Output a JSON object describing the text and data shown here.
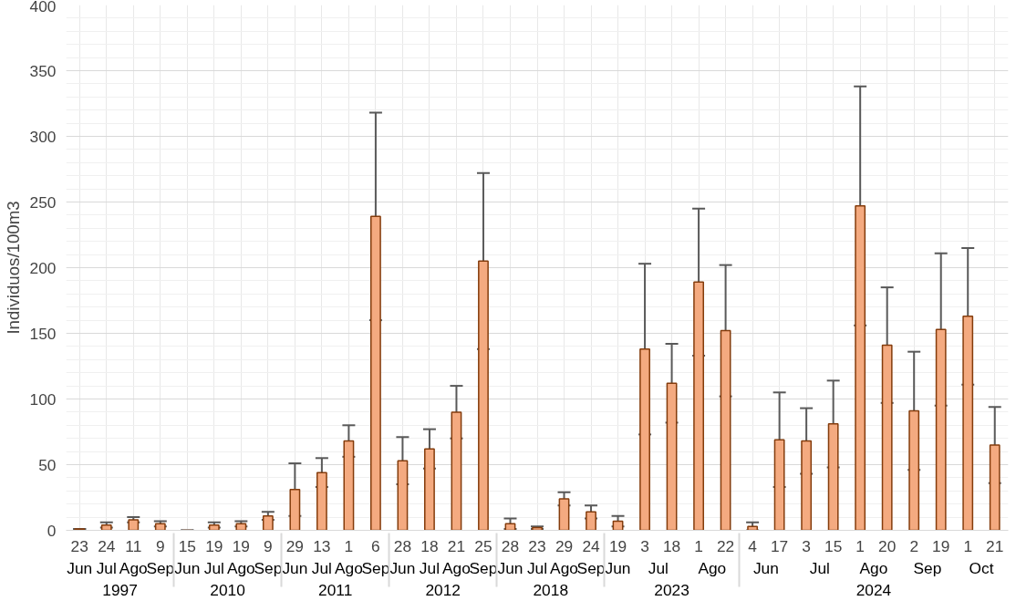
{
  "chart_data": {
    "type": "bar",
    "ylabel": "Individuos/100m3",
    "categories": [
      [
        "1997",
        "Jun",
        "23"
      ],
      [
        null,
        "Jul",
        "24"
      ],
      [
        null,
        "Ago",
        "11"
      ],
      [
        null,
        "Sep",
        "9"
      ],
      [
        "2010",
        "Jun",
        "15"
      ],
      [
        null,
        "Jul",
        "19"
      ],
      [
        null,
        "Ago",
        "19"
      ],
      [
        null,
        "Sep",
        "9"
      ],
      [
        "2011",
        "Jun",
        "29"
      ],
      [
        null,
        "Jul",
        "13"
      ],
      [
        null,
        "Ago",
        "1"
      ],
      [
        null,
        "Sep",
        "6"
      ],
      [
        "2012",
        "Jun",
        "28"
      ],
      [
        null,
        "Jul",
        "18"
      ],
      [
        null,
        "Ago",
        "21"
      ],
      [
        null,
        "Sep",
        "25"
      ],
      [
        "2018",
        "Jun",
        "28"
      ],
      [
        null,
        "Jul",
        "23"
      ],
      [
        null,
        "Ago",
        "29"
      ],
      [
        null,
        "Sep",
        "24"
      ],
      [
        "2023",
        "Jun",
        "19"
      ],
      [
        null,
        "Jul",
        "3"
      ],
      [
        null,
        null,
        "18"
      ],
      [
        null,
        "Ago",
        "1"
      ],
      [
        null,
        null,
        "22"
      ],
      [
        "2024",
        "Jun",
        "4"
      ],
      [
        null,
        null,
        "17"
      ],
      [
        null,
        "Jul",
        "3"
      ],
      [
        null,
        null,
        "15"
      ],
      [
        null,
        "Ago",
        "1"
      ],
      [
        null,
        null,
        "20"
      ],
      [
        null,
        "Sep",
        "2"
      ],
      [
        null,
        null,
        "19"
      ],
      [
        null,
        "Oct",
        "1"
      ],
      [
        null,
        null,
        "21"
      ]
    ],
    "series": [
      {
        "color": "#f4aa80",
        "values": [
          1,
          4,
          8,
          5,
          0,
          4,
          5,
          11,
          31,
          44,
          68,
          239,
          53,
          62,
          90,
          205,
          5,
          2,
          24,
          14,
          7,
          138,
          112,
          189,
          152,
          3,
          69,
          68,
          81,
          247,
          141,
          91,
          153,
          163,
          65
        ],
        "errors": [
          0,
          2,
          2,
          2,
          0,
          2,
          2,
          3,
          20,
          11,
          12,
          79,
          18,
          15,
          20,
          67,
          4,
          1,
          5,
          5,
          4,
          65,
          30,
          56,
          50,
          3,
          36,
          25,
          33,
          91,
          44,
          45,
          58,
          52,
          29
        ]
      }
    ],
    "ylim": [
      0,
      400
    ],
    "yticks": [
      0,
      50,
      100,
      150,
      200,
      250,
      300,
      350,
      400
    ],
    "grid": true
  }
}
